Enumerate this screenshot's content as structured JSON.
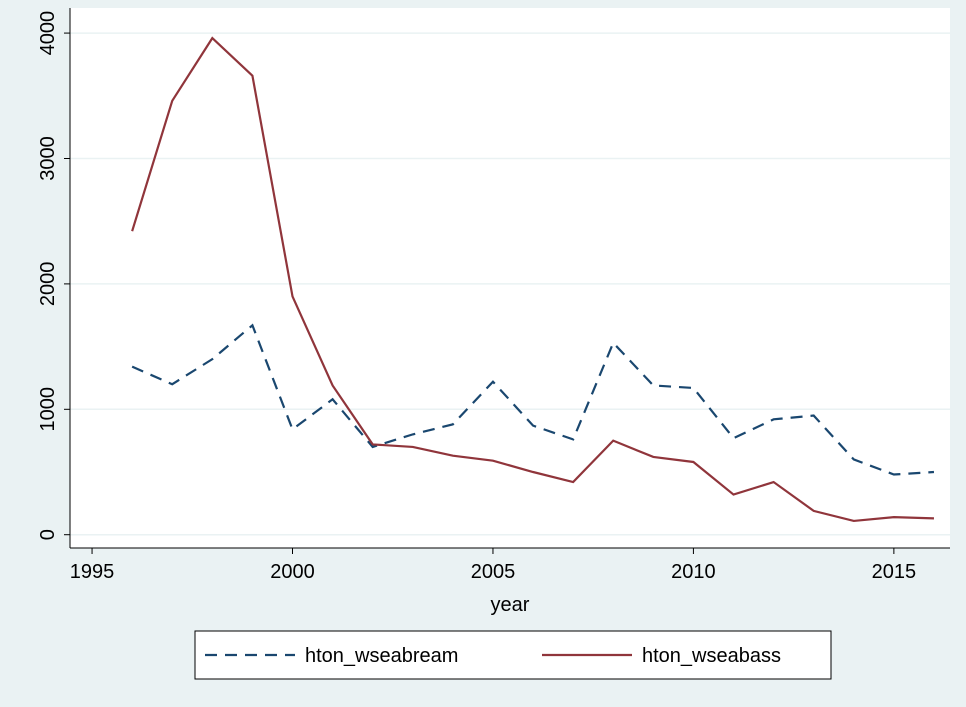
{
  "chart_data": {
    "type": "line",
    "x": [
      1996,
      1997,
      1998,
      1999,
      2000,
      2001,
      2002,
      2003,
      2004,
      2005,
      2006,
      2007,
      2008,
      2009,
      2010,
      2011,
      2012,
      2013,
      2014,
      2015,
      2016
    ],
    "series": [
      {
        "name": "hton_wseabream",
        "color": "#1a476f",
        "dash": true,
        "values": [
          1340,
          1200,
          1400,
          1670,
          840,
          1080,
          700,
          800,
          880,
          1220,
          870,
          760,
          1530,
          1190,
          1170,
          770,
          920,
          950,
          600,
          480,
          500
        ]
      },
      {
        "name": "hton_wseabass",
        "color": "#90353b",
        "dash": false,
        "values": [
          2420,
          3460,
          3960,
          3660,
          1900,
          1190,
          720,
          700,
          630,
          590,
          500,
          420,
          750,
          620,
          580,
          320,
          420,
          190,
          110,
          140,
          130
        ]
      }
    ],
    "x_label": "year",
    "xlim": [
      1994.45,
      2016.4
    ],
    "xticks": [
      1995,
      2000,
      2005,
      2010,
      2015
    ],
    "ylim": [
      -106,
      4200
    ],
    "yticks": [
      0,
      1000,
      2000,
      3000,
      4000
    ],
    "grid": true
  }
}
